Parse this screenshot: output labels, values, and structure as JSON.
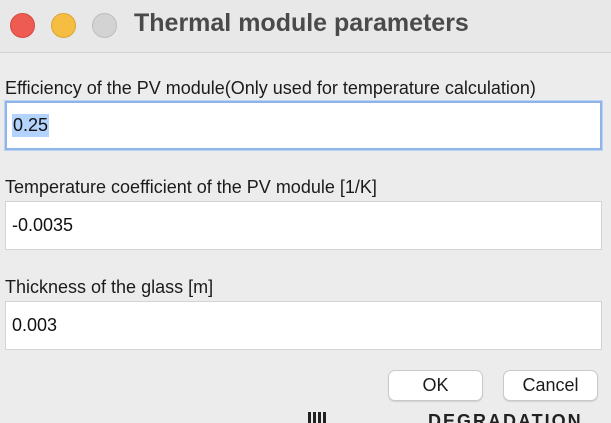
{
  "window": {
    "title": "Thermal module parameters"
  },
  "fields": [
    {
      "label": "Efficiency of the PV module(Only used for temperature calculation)",
      "value": "0.25",
      "selected": true
    },
    {
      "label": "Temperature coefficient of the PV module [1/K]",
      "value": "-0.0035"
    },
    {
      "label": "Thickness of the glass [m]",
      "value": "0.003"
    }
  ],
  "buttons": {
    "ok_label": "OK",
    "cancel_label": "Cancel"
  },
  "background": {
    "partial_text": "DEGRADATION"
  },
  "colors": {
    "close": "#ee5b53",
    "minimize": "#f5bd41",
    "maximize_disabled": "#d3d3d3",
    "selection": "#b3d3fc",
    "focus_ring": "#8fb4e8"
  }
}
